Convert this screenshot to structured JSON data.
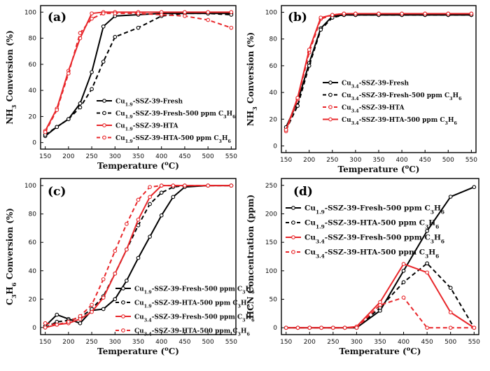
{
  "chart_data": [
    {
      "type": "line",
      "panel_label": "(a)",
      "xlabel_main": "Temperature (",
      "xlabel_unit": "o",
      "xlabel_end": "C)",
      "ylabel_pre": "NH",
      "ylabel_sub": "3",
      "ylabel_post": " Conversion (%)",
      "xlim": [
        140,
        560
      ],
      "ylim": [
        -5,
        105
      ],
      "x_ticks": [
        150,
        200,
        250,
        300,
        350,
        400,
        450,
        500,
        550
      ],
      "y_ticks": [
        0,
        20,
        40,
        60,
        80,
        100
      ],
      "legend_location": "center-right",
      "series": [
        {
          "parts": [
            [
              "Cu",
              ""
            ],
            [
              "1.9",
              "sub"
            ],
            [
              "-SSZ-39-Fresh",
              ""
            ]
          ],
          "color": "#000000",
          "dash": "solid",
          "x": [
            150,
            175,
            200,
            225,
            250,
            275,
            300,
            350,
            400,
            450,
            500,
            550
          ],
          "y": [
            5,
            12,
            18,
            30,
            54,
            89,
            97,
            98,
            99,
            99,
            99,
            99
          ]
        },
        {
          "parts": [
            [
              "Cu",
              ""
            ],
            [
              "1.9",
              "sub"
            ],
            [
              "-SSZ-39-Fresh-500 ppm C",
              ""
            ],
            [
              "3",
              "sub"
            ],
            [
              "H",
              ""
            ],
            [
              "6",
              "sub"
            ]
          ],
          "color": "#000000",
          "dash": "dashed",
          "x": [
            150,
            175,
            200,
            225,
            250,
            275,
            300,
            350,
            400,
            450,
            500,
            550
          ],
          "y": [
            6,
            12,
            18,
            27,
            41,
            62,
            81,
            88,
            97,
            99,
            99,
            98
          ]
        },
        {
          "parts": [
            [
              "Cu",
              ""
            ],
            [
              "1.9",
              "sub"
            ],
            [
              "-SSZ-39-HTA",
              ""
            ]
          ],
          "color": "#e8262a",
          "dash": "solid",
          "x": [
            150,
            175,
            200,
            225,
            250,
            275,
            300,
            350,
            400,
            450,
            500,
            550
          ],
          "y": [
            9,
            26,
            55,
            80,
            99,
            100,
            100,
            100,
            100,
            100,
            100,
            100
          ]
        },
        {
          "parts": [
            [
              "Cu",
              ""
            ],
            [
              "1.9",
              "sub"
            ],
            [
              "-SSZ-39-HTA-500 ppm C",
              ""
            ],
            [
              "3",
              "sub"
            ],
            [
              "H",
              ""
            ],
            [
              "6",
              "sub"
            ]
          ],
          "color": "#e8262a",
          "dash": "dashed",
          "x": [
            150,
            175,
            200,
            225,
            250,
            275,
            300,
            350,
            400,
            450,
            500,
            550
          ],
          "y": [
            8,
            25,
            53,
            84,
            95,
            99,
            99,
            99,
            98,
            97,
            94,
            88
          ]
        }
      ]
    },
    {
      "type": "line",
      "panel_label": "(b)",
      "xlabel_main": "Temperature (",
      "xlabel_unit": "o",
      "xlabel_end": "C)",
      "ylabel_pre": "NH",
      "ylabel_sub": "3",
      "ylabel_post": " Conversion (%)",
      "xlim": [
        140,
        560
      ],
      "ylim": [
        -5,
        105
      ],
      "x_ticks": [
        150,
        200,
        250,
        300,
        350,
        400,
        450,
        500,
        550
      ],
      "y_ticks": [
        0,
        20,
        40,
        60,
        80,
        100
      ],
      "legend_location": "center-right",
      "series": [
        {
          "parts": [
            [
              "Cu",
              ""
            ],
            [
              "3.4",
              "sub"
            ],
            [
              "-SSZ-39-Fresh",
              ""
            ]
          ],
          "color": "#000000",
          "dash": "solid",
          "x": [
            150,
            175,
            200,
            225,
            250,
            275,
            300,
            350,
            400,
            450,
            500,
            550
          ],
          "y": [
            14,
            33,
            62,
            88,
            97,
            98,
            98,
            98,
            98,
            98,
            98,
            98
          ]
        },
        {
          "parts": [
            [
              "Cu",
              ""
            ],
            [
              "3.4",
              "sub"
            ],
            [
              "-SSZ-39-Fresh-500 ppm C",
              ""
            ],
            [
              "3",
              "sub"
            ],
            [
              "H",
              ""
            ],
            [
              "6",
              "sub"
            ]
          ],
          "color": "#000000",
          "dash": "dashed",
          "x": [
            150,
            175,
            200,
            225,
            250,
            275,
            300,
            350,
            400,
            450,
            500,
            550
          ],
          "y": [
            12,
            30,
            60,
            87,
            96,
            98,
            98,
            98,
            98,
            98,
            98,
            98
          ]
        },
        {
          "parts": [
            [
              "Cu",
              ""
            ],
            [
              "3.4",
              "sub"
            ],
            [
              "-SSZ-39-HTA",
              ""
            ]
          ],
          "color": "#e8262a",
          "dash": "dashed",
          "x": [
            150,
            175,
            200,
            225,
            250,
            275,
            300,
            350,
            400,
            450,
            500,
            550
          ],
          "y": [
            11,
            35,
            70,
            95,
            98,
            99,
            99,
            99,
            99,
            99,
            99,
            99
          ]
        },
        {
          "parts": [
            [
              "Cu",
              ""
            ],
            [
              "3.4",
              "sub"
            ],
            [
              "-SSZ-39-HTA-500 ppm C",
              ""
            ],
            [
              "3",
              "sub"
            ],
            [
              "H",
              ""
            ],
            [
              "6",
              "sub"
            ]
          ],
          "color": "#e8262a",
          "dash": "solid",
          "x": [
            150,
            175,
            200,
            225,
            250,
            275,
            300,
            350,
            400,
            450,
            500,
            550
          ],
          "y": [
            12,
            36,
            72,
            96,
            98,
            99,
            99,
            99,
            99,
            99,
            99,
            99
          ]
        }
      ]
    },
    {
      "type": "line",
      "panel_label": "(c)",
      "xlabel_main": "Temperature (",
      "xlabel_unit": "o",
      "xlabel_end": "C)",
      "ylabel_pre": "C",
      "ylabel_sub": "3",
      "ylabel_mid": "H",
      "ylabel_sub2": "6",
      "ylabel_post": " Conversion (%)",
      "xlim": [
        140,
        560
      ],
      "ylim": [
        -5,
        105
      ],
      "x_ticks": [
        150,
        200,
        250,
        300,
        350,
        400,
        450,
        500,
        550
      ],
      "y_ticks": [
        0,
        20,
        40,
        60,
        80,
        100
      ],
      "legend_location": "lower-right",
      "series": [
        {
          "parts": [
            [
              "Cu",
              ""
            ],
            [
              "1.9",
              "sub"
            ],
            [
              "-SSZ-39-Fresh-500 ppm C",
              ""
            ],
            [
              "3",
              "sub"
            ],
            [
              "H",
              ""
            ],
            [
              "6",
              "sub"
            ]
          ],
          "color": "#000000",
          "dash": "solid",
          "x": [
            150,
            175,
            200,
            225,
            250,
            275,
            300,
            325,
            350,
            375,
            400,
            425,
            450,
            500,
            550
          ],
          "y": [
            1,
            9,
            6,
            3,
            12,
            13,
            20,
            33,
            49,
            64,
            79,
            92,
            99,
            100,
            100
          ]
        },
        {
          "parts": [
            [
              "Cu",
              ""
            ],
            [
              "1.9",
              "sub"
            ],
            [
              "-SSZ-39-HTA-500 ppm C",
              ""
            ],
            [
              "3",
              "sub"
            ],
            [
              "H",
              ""
            ],
            [
              "6",
              "sub"
            ]
          ],
          "color": "#000000",
          "dash": "dashed",
          "x": [
            150,
            175,
            200,
            225,
            250,
            275,
            300,
            325,
            350,
            375,
            400,
            425,
            450,
            500,
            550
          ],
          "y": [
            0,
            4,
            5,
            7,
            13,
            22,
            38,
            55,
            72,
            87,
            95,
            99,
            100,
            100,
            100
          ]
        },
        {
          "parts": [
            [
              "Cu",
              ""
            ],
            [
              "3.4",
              "sub"
            ],
            [
              "-SSZ-39-Fresh-500 ppm C",
              ""
            ],
            [
              "3",
              "sub"
            ],
            [
              "H",
              ""
            ],
            [
              "6",
              "sub"
            ]
          ],
          "color": "#e8262a",
          "dash": "solid",
          "x": [
            150,
            175,
            200,
            225,
            250,
            275,
            300,
            325,
            350,
            375,
            400,
            425,
            450,
            500,
            550
          ],
          "y": [
            0,
            2,
            3,
            6,
            11,
            21,
            38,
            55,
            76,
            92,
            100,
            100,
            100,
            100,
            100
          ]
        },
        {
          "parts": [
            [
              "Cu",
              ""
            ],
            [
              "3.4",
              "sub"
            ],
            [
              "-SSZ-39-HTA-500 ppm C",
              ""
            ],
            [
              "3",
              "sub"
            ],
            [
              "H",
              ""
            ],
            [
              "6",
              "sub"
            ]
          ],
          "color": "#e8262a",
          "dash": "dashed",
          "x": [
            150,
            175,
            200,
            225,
            250,
            275,
            300,
            325,
            350,
            375,
            400,
            425,
            450,
            500,
            550
          ],
          "y": [
            3,
            2,
            4,
            8,
            16,
            34,
            54,
            73,
            90,
            99,
            100,
            100,
            100,
            100,
            100
          ]
        }
      ]
    },
    {
      "type": "line",
      "panel_label": "(d)",
      "xlabel_main": "Temperature (",
      "xlabel_unit": "o",
      "xlabel_end": "C)",
      "ylabel_pre": "HCN Concentration (ppm)",
      "ylabel_sub": "",
      "ylabel_post": "",
      "xlim": [
        140,
        560
      ],
      "ylim": [
        -12,
        262
      ],
      "x_ticks": [
        150,
        200,
        250,
        300,
        350,
        400,
        450,
        500,
        550
      ],
      "y_ticks": [
        0,
        50,
        100,
        150,
        200,
        250
      ],
      "legend_location": "top-left",
      "series": [
        {
          "parts": [
            [
              "Cu",
              ""
            ],
            [
              "1.9",
              "sub"
            ],
            [
              "-SSZ-39-Fresh-500 ppm C",
              ""
            ],
            [
              "3",
              "sub"
            ],
            [
              "H",
              ""
            ],
            [
              "6",
              "sub"
            ]
          ],
          "color": "#000000",
          "dash": "solid",
          "x": [
            150,
            175,
            200,
            225,
            250,
            275,
            300,
            350,
            400,
            450,
            500,
            550
          ],
          "y": [
            0,
            0,
            0,
            0,
            0,
            0,
            0,
            30,
            100,
            170,
            230,
            247
          ]
        },
        {
          "parts": [
            [
              "Cu",
              ""
            ],
            [
              "1.9",
              "sub"
            ],
            [
              "-SSZ-39-HTA-500 ppm C",
              ""
            ],
            [
              "3",
              "sub"
            ],
            [
              "H",
              ""
            ],
            [
              "6",
              "sub"
            ]
          ],
          "color": "#000000",
          "dash": "dashed",
          "x": [
            150,
            175,
            200,
            225,
            250,
            275,
            300,
            350,
            400,
            450,
            500,
            550
          ],
          "y": [
            0,
            0,
            0,
            0,
            0,
            0,
            0,
            35,
            80,
            113,
            70,
            0
          ]
        },
        {
          "parts": [
            [
              "Cu",
              ""
            ],
            [
              "3.4",
              "sub"
            ],
            [
              "-SSZ-39-Fresh-500 ppm C",
              ""
            ],
            [
              "3",
              "sub"
            ],
            [
              "H",
              ""
            ],
            [
              "6",
              "sub"
            ]
          ],
          "color": "#e8262a",
          "dash": "solid",
          "x": [
            150,
            175,
            200,
            225,
            250,
            275,
            300,
            350,
            400,
            450,
            500,
            550
          ],
          "y": [
            0,
            0,
            0,
            0,
            0,
            0,
            2,
            45,
            112,
            97,
            27,
            0
          ]
        },
        {
          "parts": [
            [
              "Cu",
              ""
            ],
            [
              "3.4",
              "sub"
            ],
            [
              "-SSZ-39-HTA-500 ppm C",
              ""
            ],
            [
              "3",
              "sub"
            ],
            [
              "H",
              ""
            ],
            [
              "6",
              "sub"
            ]
          ],
          "color": "#e8262a",
          "dash": "dashed",
          "x": [
            150,
            175,
            200,
            225,
            250,
            275,
            300,
            350,
            400,
            450,
            500,
            550
          ],
          "y": [
            0,
            0,
            0,
            0,
            0,
            0,
            0,
            40,
            53,
            0,
            0,
            0
          ]
        }
      ]
    }
  ]
}
